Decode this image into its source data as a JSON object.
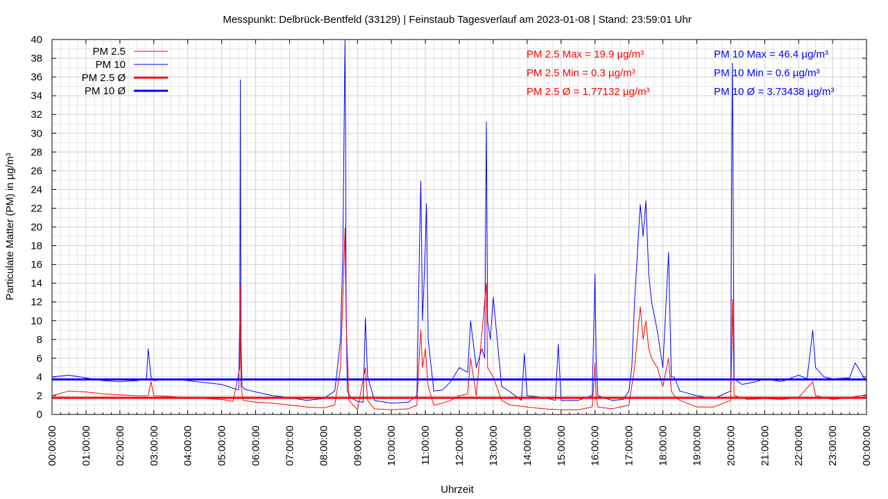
{
  "chart_data": {
    "type": "line",
    "title": "Messpunkt: Delbrück-Bentfeld (33129) | Feinstaub Tagesverlauf am 2023-01-08 | Stand: 23:59:01 Uhr",
    "xlabel": "Uhrzeit",
    "ylabel": "Particulate Matter (PM) in µg/m³",
    "ylim": [
      0,
      40
    ],
    "yticks": [
      "0",
      "2",
      "4",
      "6",
      "8",
      "10",
      "12",
      "14",
      "16",
      "18",
      "20",
      "22",
      "24",
      "26",
      "28",
      "30",
      "32",
      "34",
      "36",
      "38",
      "40"
    ],
    "xlim": [
      "00:00:00",
      "24:00:00"
    ],
    "xticks": [
      "00:00:00",
      "01:00:00",
      "02:00:00",
      "03:00:00",
      "04:00:00",
      "05:00:00",
      "06:00:00",
      "07:00:00",
      "08:00:00",
      "09:00:00",
      "10:00:00",
      "11:00:00",
      "12:00:00",
      "13:00:00",
      "14:00:00",
      "15:00:00",
      "16:00:00",
      "17:00:00",
      "18:00:00",
      "19:00:00",
      "20:00:00",
      "21:00:00",
      "22:00:00",
      "23:00:00",
      "00:00:00"
    ],
    "grid": true,
    "legend_position": "top-left",
    "legend": [
      {
        "label": "PM 2.5",
        "color": "#ff0000",
        "style": "thin"
      },
      {
        "label": "PM 10",
        "color": "#0000ff",
        "style": "thin"
      },
      {
        "label": "PM 2.5 Ø",
        "color": "#ff0000",
        "style": "thick"
      },
      {
        "label": "PM 10 Ø",
        "color": "#0000ff",
        "style": "thick"
      }
    ],
    "series": [
      {
        "name": "PM 10",
        "color": "#0000ff",
        "x": [
          "00:00",
          "00:30",
          "01:00",
          "01:30",
          "02:00",
          "02:30",
          "02:47",
          "02:50",
          "02:55",
          "03:00",
          "03:30",
          "04:00",
          "04:30",
          "05:00",
          "05:20",
          "05:30",
          "05:32",
          "05:33",
          "05:34",
          "05:36",
          "05:40",
          "06:00",
          "06:30",
          "07:00",
          "07:30",
          "08:00",
          "08:20",
          "08:30",
          "08:34",
          "08:38",
          "08:39",
          "08:40",
          "08:42",
          "08:48",
          "09:00",
          "09:10",
          "09:14",
          "09:18",
          "09:30",
          "10:00",
          "10:30",
          "10:45",
          "10:50",
          "10:52",
          "10:55",
          "11:00",
          "11:02",
          "11:05",
          "11:15",
          "11:30",
          "11:45",
          "12:00",
          "12:15",
          "12:20",
          "12:30",
          "12:40",
          "12:45",
          "12:48",
          "12:50",
          "12:55",
          "13:00",
          "13:15",
          "13:30",
          "13:50",
          "13:55",
          "14:00",
          "14:30",
          "14:50",
          "14:55",
          "15:00",
          "15:30",
          "15:55",
          "16:00",
          "16:02",
          "16:05",
          "16:30",
          "16:50",
          "17:00",
          "17:05",
          "17:10",
          "17:20",
          "17:25",
          "17:30",
          "17:35",
          "17:40",
          "17:50",
          "18:00",
          "18:10",
          "18:15",
          "18:20",
          "18:30",
          "19:00",
          "19:30",
          "20:00",
          "20:02",
          "20:03",
          "20:06",
          "20:20",
          "20:45",
          "21:00",
          "21:30",
          "22:00",
          "22:15",
          "22:25",
          "22:30",
          "22:45",
          "23:00",
          "23:30",
          "23:40",
          "24:00"
        ],
        "values": [
          4.0,
          4.2,
          3.9,
          3.6,
          3.5,
          3.6,
          3.8,
          7.0,
          4.0,
          3.6,
          3.8,
          3.6,
          3.4,
          3.2,
          2.8,
          2.6,
          10.0,
          35.7,
          8.0,
          3.0,
          2.7,
          2.4,
          2.0,
          1.8,
          1.5,
          1.7,
          2.5,
          8.0,
          17.0,
          40.0,
          31.0,
          12.0,
          2.5,
          1.8,
          1.4,
          1.3,
          10.3,
          4.0,
          1.5,
          1.2,
          1.3,
          2.0,
          19.0,
          24.9,
          10.0,
          18.0,
          22.5,
          8.0,
          2.5,
          2.6,
          3.5,
          5.0,
          4.5,
          10.0,
          5.0,
          7.0,
          6.0,
          31.2,
          10.0,
          8.0,
          12.5,
          3.0,
          2.4,
          1.5,
          6.5,
          2.0,
          1.8,
          1.5,
          7.5,
          1.5,
          1.5,
          2.0,
          15.0,
          6.0,
          2.0,
          1.5,
          1.6,
          2.5,
          5.0,
          12.0,
          22.4,
          19.0,
          22.8,
          15.0,
          12.0,
          9.0,
          5.0,
          17.3,
          4.0,
          4.0,
          2.5,
          2.0,
          1.7,
          2.5,
          30.0,
          37.5,
          3.8,
          3.2,
          3.5,
          3.8,
          3.5,
          4.2,
          3.8,
          9.0,
          5.0,
          4.0,
          3.8,
          3.9,
          5.5,
          3.5
        ]
      },
      {
        "name": "PM 2.5",
        "color": "#ff0000",
        "x": [
          "00:00",
          "00:30",
          "01:00",
          "01:30",
          "02:00",
          "02:30",
          "02:50",
          "02:55",
          "03:00",
          "03:30",
          "04:00",
          "04:30",
          "05:00",
          "05:20",
          "05:32",
          "05:33",
          "05:34",
          "05:38",
          "06:00",
          "06:30",
          "07:00",
          "07:30",
          "08:00",
          "08:20",
          "08:30",
          "08:34",
          "08:38",
          "08:40",
          "08:45",
          "09:00",
          "09:14",
          "09:18",
          "09:30",
          "10:00",
          "10:30",
          "10:45",
          "10:50",
          "10:52",
          "10:55",
          "11:00",
          "11:05",
          "11:15",
          "11:30",
          "11:45",
          "12:00",
          "12:15",
          "12:20",
          "12:30",
          "12:48",
          "12:50",
          "13:00",
          "13:15",
          "13:30",
          "14:00",
          "14:30",
          "15:00",
          "15:30",
          "15:55",
          "16:00",
          "16:02",
          "16:05",
          "16:30",
          "17:00",
          "17:10",
          "17:20",
          "17:25",
          "17:30",
          "17:35",
          "17:40",
          "17:50",
          "18:00",
          "18:10",
          "18:15",
          "18:20",
          "18:30",
          "19:00",
          "19:30",
          "20:00",
          "20:02",
          "20:03",
          "20:06",
          "20:30",
          "21:00",
          "21:30",
          "22:00",
          "22:25",
          "22:30",
          "23:00",
          "23:30",
          "24:00"
        ],
        "values": [
          2.0,
          2.5,
          2.4,
          2.2,
          2.1,
          2.0,
          2.0,
          3.5,
          2.0,
          1.9,
          1.8,
          1.7,
          1.6,
          1.4,
          5.0,
          13.8,
          3.0,
          1.5,
          1.3,
          1.2,
          1.0,
          0.8,
          0.7,
          1.0,
          5.0,
          12.0,
          19.9,
          10.0,
          1.5,
          0.5,
          5.0,
          1.5,
          0.6,
          0.5,
          0.6,
          1.0,
          7.0,
          9.0,
          5.0,
          7.0,
          3.0,
          1.0,
          1.2,
          1.5,
          2.0,
          2.2,
          6.0,
          2.0,
          14.0,
          5.0,
          4.0,
          1.5,
          1.0,
          0.8,
          0.6,
          0.5,
          0.5,
          0.8,
          5.5,
          2.0,
          0.8,
          0.6,
          1.0,
          5.0,
          11.5,
          8.0,
          10.0,
          7.0,
          6.0,
          5.0,
          3.0,
          6.0,
          2.5,
          2.0,
          1.5,
          0.8,
          0.8,
          1.5,
          8.0,
          12.3,
          2.0,
          1.6,
          1.7,
          1.6,
          1.8,
          3.5,
          2.0,
          1.6,
          1.8,
          2.1
        ]
      },
      {
        "name": "PM 2.5 Ø",
        "color": "#ff0000",
        "x": [
          "00:00",
          "24:00"
        ],
        "values": [
          1.77132,
          1.77132
        ]
      },
      {
        "name": "PM 10 Ø",
        "color": "#0000ff",
        "x": [
          "00:00",
          "24:00"
        ],
        "values": [
          3.73438,
          3.73438
        ]
      }
    ],
    "annotations": {
      "pm25": [
        "PM 2.5 Max = 19.9 µg/m³",
        "PM 2.5 Min = 0.3 µg/m³",
        "PM 2.5 Ø = 1.77132 µg/m³"
      ],
      "pm10": [
        "PM 10 Max = 46.4 µg/m³",
        "PM 10 Min = 0.6 µg/m³",
        "PM 10 Ø = 3.73438 µg/m³"
      ]
    }
  }
}
